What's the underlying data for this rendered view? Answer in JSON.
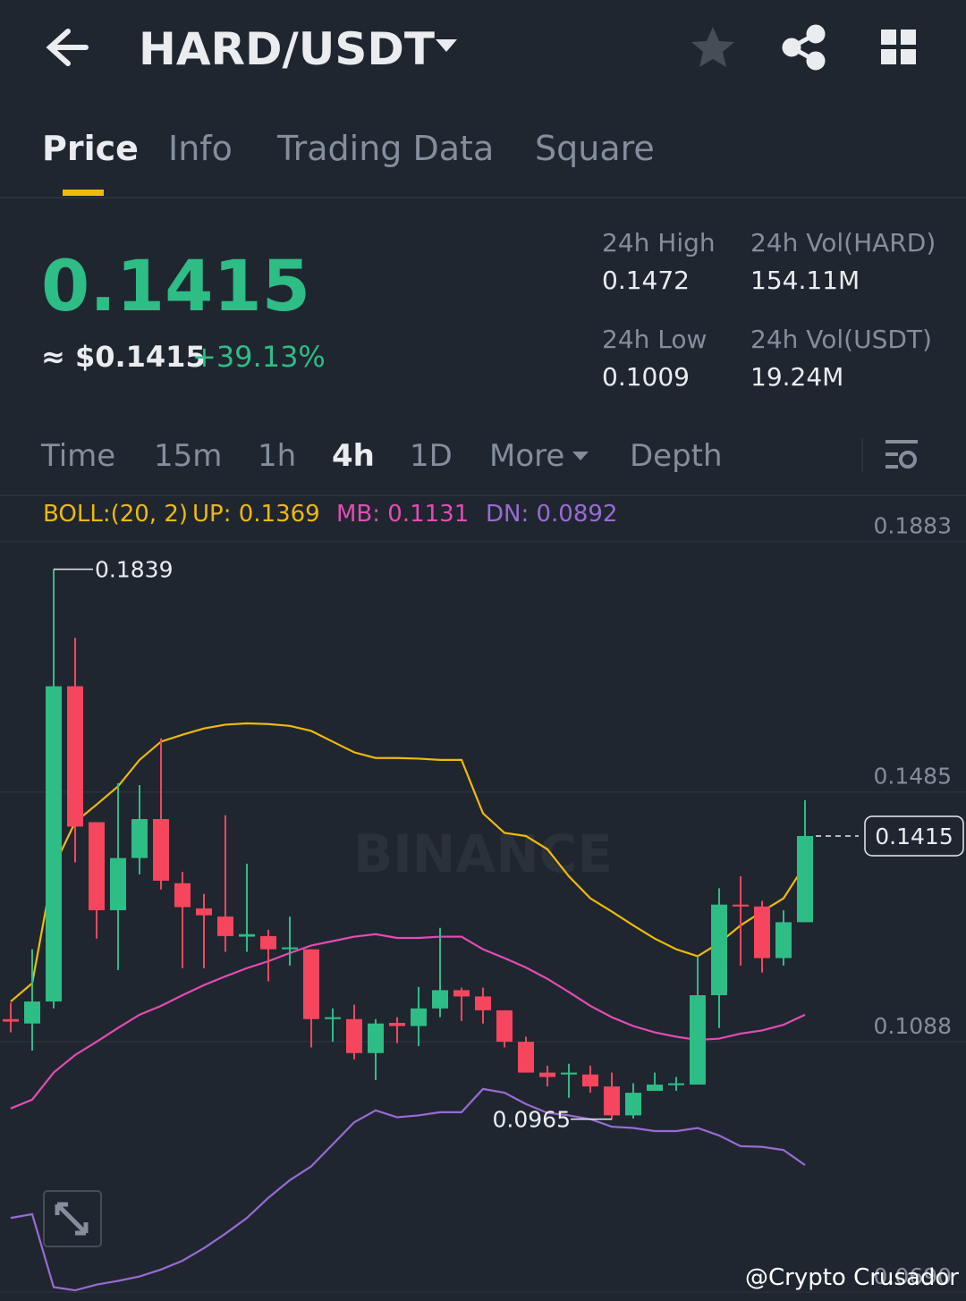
{
  "header": {
    "title": "HARD/USDT"
  },
  "tabs": [
    "Price",
    "Info",
    "Trading Data",
    "Square"
  ],
  "ticker": {
    "price": "0.1415",
    "fiat": "≈ $0.1415",
    "change": "+39.13%"
  },
  "stats": [
    {
      "label": "24h High",
      "value": "0.1472"
    },
    {
      "label": "24h Vol(HARD)",
      "value": "154.11M"
    },
    {
      "label": "24h Low",
      "value": "0.1009"
    },
    {
      "label": "24h Vol(USDT)",
      "value": "19.24M"
    }
  ],
  "intervals": [
    "Time",
    "15m",
    "1h",
    "4h",
    "1D",
    "More",
    "Depth"
  ],
  "indicator": {
    "name": "BOLL:(20, 2)",
    "up": "UP: 0.1369",
    "mb": "MB: 0.1131",
    "dn": "DN: 0.0892"
  },
  "chart_data": {
    "type": "candlestick",
    "up_color": "#2ebd85",
    "down_color": "#f6465d",
    "open": [
      0.1124,
      0.1117,
      0.1152,
      0.1653,
      0.1437,
      0.1297,
      0.138,
      0.1442,
      0.134,
      0.13,
      0.1287,
      0.1255,
      0.1256,
      0.1235,
      0.1235,
      0.1124,
      0.1124,
      0.107,
      0.1118,
      0.1113,
      0.1141,
      0.117,
      0.116,
      0.1138,
      0.1088,
      0.1039,
      0.1036,
      0.1036,
      0.1017,
      0.0971,
      0.101,
      0.1019,
      0.102,
      0.1162,
      0.1306,
      0.1303,
      0.1221,
      0.1278
    ],
    "high": [
      0.115,
      0.1235,
      0.1839,
      0.173,
      0.1437,
      0.1499,
      0.1496,
      0.157,
      0.1358,
      0.1323,
      0.1448,
      0.1371,
      0.1266,
      0.1287,
      0.1235,
      0.1141,
      0.1147,
      0.1124,
      0.1127,
      0.1175,
      0.1269,
      0.1174,
      0.1174,
      0.1138,
      0.1096,
      0.105,
      0.1053,
      0.105,
      0.1039,
      0.1022,
      0.1039,
      0.1032,
      0.1224,
      0.1332,
      0.1351,
      0.1312,
      0.1297,
      0.1472
    ],
    "low": [
      0.1103,
      0.1074,
      0.1141,
      0.1373,
      0.1252,
      0.1202,
      0.1354,
      0.133,
      0.1205,
      0.1205,
      0.1231,
      0.1231,
      0.1184,
      0.1209,
      0.1079,
      0.1088,
      0.106,
      0.1027,
      0.1086,
      0.1081,
      0.1127,
      0.1121,
      0.1117,
      0.1079,
      0.1039,
      0.1017,
      0.0999,
      0.1007,
      0.0965,
      0.0966,
      0.101,
      0.101,
      0.102,
      0.111,
      0.1209,
      0.1198,
      0.1209,
      0.1278
    ],
    "close": [
      0.112,
      0.1152,
      0.1653,
      0.143,
      0.1297,
      0.138,
      0.1442,
      0.1344,
      0.1302,
      0.1289,
      0.1256,
      0.1259,
      0.1235,
      0.1238,
      0.1124,
      0.1127,
      0.107,
      0.1117,
      0.1113,
      0.1141,
      0.117,
      0.116,
      0.1138,
      0.1088,
      0.1039,
      0.1032,
      0.1039,
      0.1017,
      0.0971,
      0.1007,
      0.102,
      0.1022,
      0.1162,
      0.1306,
      0.1303,
      0.1221,
      0.1278,
      0.1415
    ],
    "bands": [
      {
        "color": "#f0b90b",
        "values": [
          0.1152,
          0.1181,
          0.1366,
          0.1437,
          0.1465,
          0.1494,
          0.1536,
          0.1565,
          0.1576,
          0.1586,
          0.1592,
          0.1594,
          0.1593,
          0.159,
          0.1582,
          0.1565,
          0.1548,
          0.1539,
          0.1539,
          0.1538,
          0.1536,
          0.1536,
          0.1451,
          0.142,
          0.1415,
          0.1394,
          0.1351,
          0.1316,
          0.1295,
          0.1273,
          0.1252,
          0.1235,
          0.1224,
          0.1245,
          0.1273,
          0.1295,
          0.1316,
          0.1369
        ]
      },
      {
        "color": "#e54bb5",
        "values": [
          0.0982,
          0.0996,
          0.1039,
          0.1067,
          0.1088,
          0.111,
          0.1131,
          0.1145,
          0.1162,
          0.1178,
          0.1192,
          0.1205,
          0.1216,
          0.1229,
          0.1241,
          0.1248,
          0.1255,
          0.1259,
          0.1253,
          0.1253,
          0.1255,
          0.1255,
          0.1235,
          0.1221,
          0.1206,
          0.1188,
          0.1167,
          0.1145,
          0.1127,
          0.1113,
          0.1103,
          0.1096,
          0.1091,
          0.1093,
          0.1101,
          0.1106,
          0.1115,
          0.1131
        ]
      },
      {
        "color": "#9a6ad6",
        "values": [
          0.0808,
          0.0814,
          0.0698,
          0.0693,
          0.0702,
          0.0708,
          0.0715,
          0.0726,
          0.074,
          0.076,
          0.0783,
          0.0808,
          0.084,
          0.0868,
          0.089,
          0.0925,
          0.096,
          0.0979,
          0.0968,
          0.0971,
          0.0976,
          0.0976,
          0.1013,
          0.1007,
          0.0989,
          0.0975,
          0.0971,
          0.0965,
          0.0953,
          0.0951,
          0.0946,
          0.0946,
          0.0951,
          0.0939,
          0.0922,
          0.0921,
          0.0916,
          0.0892
        ]
      }
    ],
    "ylim": [
      0.0676,
      0.1955
    ],
    "yticks": [
      0.1883,
      0.1485,
      0.1088,
      {
        "value": 0.069,
        "label": "0.0690"
      }
    ],
    "grid": true,
    "max_label": 0.1839,
    "min_label": 0.0965,
    "last_price": 0.1415,
    "watermark": "BINANCE"
  },
  "footer": "@Crypto Crusador"
}
